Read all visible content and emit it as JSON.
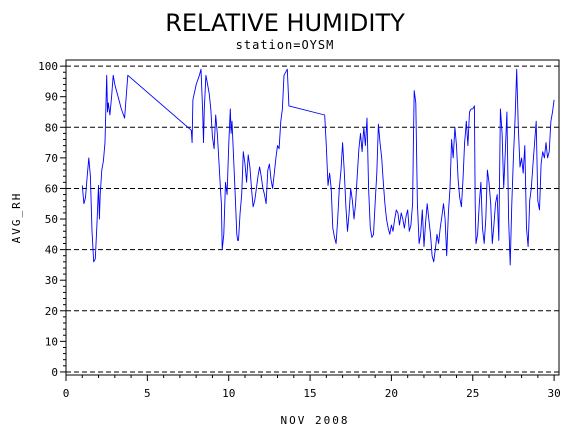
{
  "chart_data": {
    "type": "line",
    "title": "RELATIVE HUMIDITY",
    "subtitle": "station=OYSM",
    "xlabel": "NOV 2008",
    "ylabel": "AVG_RH",
    "xlim": [
      0,
      30.3
    ],
    "ylim": [
      -1,
      102
    ],
    "x_ticks": [
      0,
      5,
      10,
      15,
      20,
      25,
      30
    ],
    "y_ticks": [
      0,
      10,
      20,
      30,
      40,
      50,
      60,
      70,
      80,
      90,
      100
    ],
    "grid_lines_y": [
      0,
      20,
      40,
      60,
      80,
      100
    ],
    "grid": "dashed horizontal",
    "series_color": "#0000ff",
    "series": [
      {
        "values": [
          [
            1.0,
            61
          ],
          [
            1.1,
            55
          ],
          [
            1.2,
            57
          ],
          [
            1.3,
            64
          ],
          [
            1.4,
            70
          ],
          [
            1.5,
            64
          ],
          [
            1.6,
            46
          ],
          [
            1.7,
            36
          ],
          [
            1.8,
            37
          ],
          [
            1.9,
            48
          ],
          [
            2.0,
            61
          ],
          [
            2.05,
            50
          ],
          [
            2.1,
            58
          ],
          [
            2.2,
            66
          ],
          [
            2.3,
            69
          ],
          [
            2.4,
            75
          ],
          [
            2.5,
            97
          ],
          [
            2.55,
            85
          ],
          [
            2.6,
            88
          ],
          [
            2.7,
            84
          ],
          [
            2.8,
            90
          ],
          [
            2.9,
            97
          ],
          [
            3.0,
            94
          ],
          [
            3.2,
            90
          ],
          [
            3.4,
            86
          ],
          [
            3.6,
            83
          ],
          [
            3.8,
            97
          ],
          [
            7.7,
            79
          ],
          [
            7.75,
            75
          ],
          [
            7.8,
            89
          ],
          [
            8.0,
            94
          ],
          [
            8.2,
            97
          ],
          [
            8.3,
            99
          ],
          [
            8.4,
            85
          ],
          [
            8.45,
            75
          ],
          [
            8.5,
            86
          ],
          [
            8.6,
            97
          ],
          [
            8.7,
            94
          ],
          [
            8.8,
            91
          ],
          [
            8.9,
            86
          ],
          [
            9.0,
            77
          ],
          [
            9.1,
            73
          ],
          [
            9.2,
            84
          ],
          [
            9.3,
            78
          ],
          [
            9.4,
            69
          ],
          [
            9.5,
            59
          ],
          [
            9.55,
            55
          ],
          [
            9.6,
            40
          ],
          [
            9.7,
            45
          ],
          [
            9.8,
            62
          ],
          [
            9.9,
            58
          ],
          [
            10.0,
            74
          ],
          [
            10.1,
            86
          ],
          [
            10.15,
            78
          ],
          [
            10.2,
            82
          ],
          [
            10.3,
            70
          ],
          [
            10.4,
            58
          ],
          [
            10.5,
            45
          ],
          [
            10.55,
            43
          ],
          [
            10.6,
            43
          ],
          [
            10.7,
            52
          ],
          [
            10.8,
            58
          ],
          [
            10.9,
            72
          ],
          [
            11.0,
            68
          ],
          [
            11.1,
            62
          ],
          [
            11.2,
            71
          ],
          [
            11.3,
            67
          ],
          [
            11.4,
            60
          ],
          [
            11.5,
            54
          ],
          [
            11.6,
            56
          ],
          [
            11.7,
            60
          ],
          [
            11.8,
            64
          ],
          [
            11.9,
            67
          ],
          [
            12.0,
            64
          ],
          [
            12.1,
            60
          ],
          [
            12.2,
            58
          ],
          [
            12.3,
            55
          ],
          [
            12.4,
            66
          ],
          [
            12.5,
            68
          ],
          [
            12.6,
            63
          ],
          [
            12.7,
            60
          ],
          [
            12.8,
            65
          ],
          [
            12.9,
            70
          ],
          [
            13.0,
            74
          ],
          [
            13.1,
            73
          ],
          [
            13.2,
            82
          ],
          [
            13.3,
            86
          ],
          [
            13.4,
            97
          ],
          [
            13.5,
            98
          ],
          [
            13.6,
            99
          ],
          [
            13.7,
            87
          ],
          [
            15.9,
            84
          ],
          [
            16.0,
            74
          ],
          [
            16.1,
            61
          ],
          [
            16.2,
            65
          ],
          [
            16.3,
            60
          ],
          [
            16.4,
            47
          ],
          [
            16.5,
            44
          ],
          [
            16.6,
            42
          ],
          [
            16.7,
            50
          ],
          [
            16.8,
            60
          ],
          [
            16.9,
            66
          ],
          [
            17.0,
            75
          ],
          [
            17.1,
            66
          ],
          [
            17.2,
            54
          ],
          [
            17.3,
            46
          ],
          [
            17.4,
            52
          ],
          [
            17.5,
            60
          ],
          [
            17.6,
            56
          ],
          [
            17.7,
            50
          ],
          [
            17.8,
            55
          ],
          [
            17.9,
            64
          ],
          [
            18.0,
            73
          ],
          [
            18.1,
            78
          ],
          [
            18.2,
            72
          ],
          [
            18.3,
            80
          ],
          [
            18.4,
            74
          ],
          [
            18.5,
            83
          ],
          [
            18.6,
            60
          ],
          [
            18.7,
            47
          ],
          [
            18.8,
            44
          ],
          [
            18.9,
            45
          ],
          [
            19.0,
            55
          ],
          [
            19.1,
            65
          ],
          [
            19.2,
            81
          ],
          [
            19.3,
            75
          ],
          [
            19.4,
            70
          ],
          [
            19.5,
            62
          ],
          [
            19.6,
            55
          ],
          [
            19.7,
            50
          ],
          [
            19.8,
            47
          ],
          [
            19.9,
            45
          ],
          [
            20.0,
            48
          ],
          [
            20.1,
            46
          ],
          [
            20.2,
            50
          ],
          [
            20.3,
            53
          ],
          [
            20.4,
            52
          ],
          [
            20.5,
            48
          ],
          [
            20.6,
            52
          ],
          [
            20.7,
            50
          ],
          [
            20.8,
            47
          ],
          [
            20.9,
            51
          ],
          [
            21.0,
            53
          ],
          [
            21.1,
            46
          ],
          [
            21.2,
            48
          ],
          [
            21.3,
            55
          ],
          [
            21.35,
            75
          ],
          [
            21.4,
            92
          ],
          [
            21.5,
            88
          ],
          [
            21.6,
            55
          ],
          [
            21.7,
            42
          ],
          [
            21.8,
            45
          ],
          [
            21.9,
            53
          ],
          [
            22.0,
            41
          ],
          [
            22.1,
            49
          ],
          [
            22.2,
            55
          ],
          [
            22.3,
            50
          ],
          [
            22.4,
            45
          ],
          [
            22.5,
            38
          ],
          [
            22.6,
            36
          ],
          [
            22.7,
            40
          ],
          [
            22.8,
            45
          ],
          [
            22.9,
            42
          ],
          [
            23.0,
            47
          ],
          [
            23.1,
            51
          ],
          [
            23.2,
            55
          ],
          [
            23.3,
            50
          ],
          [
            23.4,
            38
          ],
          [
            23.5,
            52
          ],
          [
            23.6,
            60
          ],
          [
            23.7,
            76
          ],
          [
            23.8,
            70
          ],
          [
            23.9,
            80
          ],
          [
            24.0,
            74
          ],
          [
            24.1,
            63
          ],
          [
            24.2,
            57
          ],
          [
            24.3,
            54
          ],
          [
            24.4,
            63
          ],
          [
            24.5,
            75
          ],
          [
            24.55,
            78
          ],
          [
            24.6,
            82
          ],
          [
            24.7,
            74
          ],
          [
            24.8,
            85
          ],
          [
            24.9,
            86
          ],
          [
            25.0,
            86
          ],
          [
            25.1,
            87
          ],
          [
            25.15,
            55
          ],
          [
            25.2,
            42
          ],
          [
            25.3,
            45
          ],
          [
            25.4,
            55
          ],
          [
            25.5,
            62
          ],
          [
            25.6,
            47
          ],
          [
            25.7,
            42
          ],
          [
            25.8,
            50
          ],
          [
            25.9,
            66
          ],
          [
            26.0,
            62
          ],
          [
            26.1,
            55
          ],
          [
            26.2,
            42
          ],
          [
            26.3,
            48
          ],
          [
            26.4,
            55
          ],
          [
            26.5,
            58
          ],
          [
            26.6,
            43
          ],
          [
            26.7,
            86
          ],
          [
            26.8,
            78
          ],
          [
            26.9,
            60
          ],
          [
            27.0,
            72
          ],
          [
            27.1,
            85
          ],
          [
            27.2,
            50
          ],
          [
            27.3,
            35
          ],
          [
            27.4,
            55
          ],
          [
            27.5,
            70
          ],
          [
            27.6,
            83
          ],
          [
            27.7,
            99
          ],
          [
            27.8,
            80
          ],
          [
            27.9,
            67
          ],
          [
            28.0,
            70
          ],
          [
            28.1,
            65
          ],
          [
            28.2,
            74
          ],
          [
            28.3,
            47
          ],
          [
            28.4,
            41
          ],
          [
            28.5,
            56
          ],
          [
            28.6,
            60
          ],
          [
            28.7,
            68
          ],
          [
            28.8,
            75
          ],
          [
            28.9,
            82
          ],
          [
            29.0,
            56
          ],
          [
            29.1,
            53
          ],
          [
            29.2,
            68
          ],
          [
            29.3,
            72
          ],
          [
            29.4,
            70
          ],
          [
            29.5,
            75
          ],
          [
            29.6,
            70
          ],
          [
            29.7,
            72
          ],
          [
            29.8,
            82
          ],
          [
            29.9,
            85
          ],
          [
            30.0,
            89
          ]
        ]
      }
    ]
  }
}
